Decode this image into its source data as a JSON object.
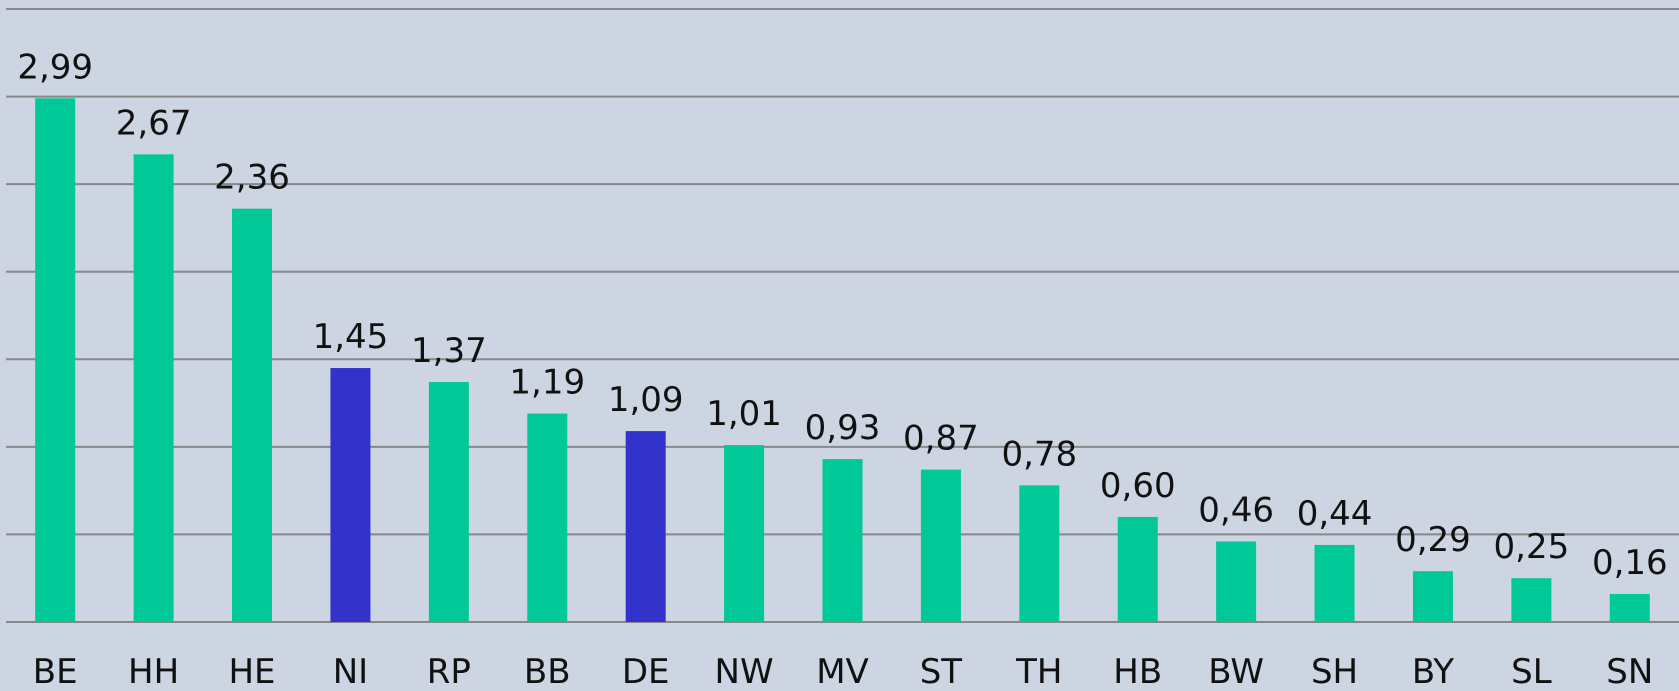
{
  "chart_data": {
    "type": "bar",
    "categories": [
      "BE",
      "HH",
      "HE",
      "NI",
      "RP",
      "BB",
      "DE",
      "NW",
      "MV",
      "ST",
      "TH",
      "HB",
      "BW",
      "SH",
      "BY",
      "SL",
      "SN"
    ],
    "values": [
      2.99,
      2.67,
      2.36,
      1.45,
      1.37,
      1.19,
      1.09,
      1.01,
      0.93,
      0.87,
      0.78,
      0.6,
      0.46,
      0.44,
      0.29,
      0.25,
      0.16
    ],
    "value_labels": [
      "2,99",
      "2,67",
      "2,36",
      "1,45",
      "1,37",
      "1,19",
      "1,09",
      "1,01",
      "0,93",
      "0,87",
      "0,78",
      "0,60",
      "0,46",
      "0,44",
      "0,29",
      "0,25",
      "0,16"
    ],
    "colors": [
      "#00c896",
      "#00c896",
      "#00c896",
      "#3333cc",
      "#00c896",
      "#00c896",
      "#3333cc",
      "#00c896",
      "#00c896",
      "#00c896",
      "#00c896",
      "#00c896",
      "#00c896",
      "#00c896",
      "#00c896",
      "#00c896",
      "#00c896"
    ],
    "ylim": [
      0,
      3.5
    ],
    "yticks": [
      0,
      0.5,
      1,
      1.5,
      2,
      2.5,
      3,
      3.5
    ],
    "grid": true
  }
}
